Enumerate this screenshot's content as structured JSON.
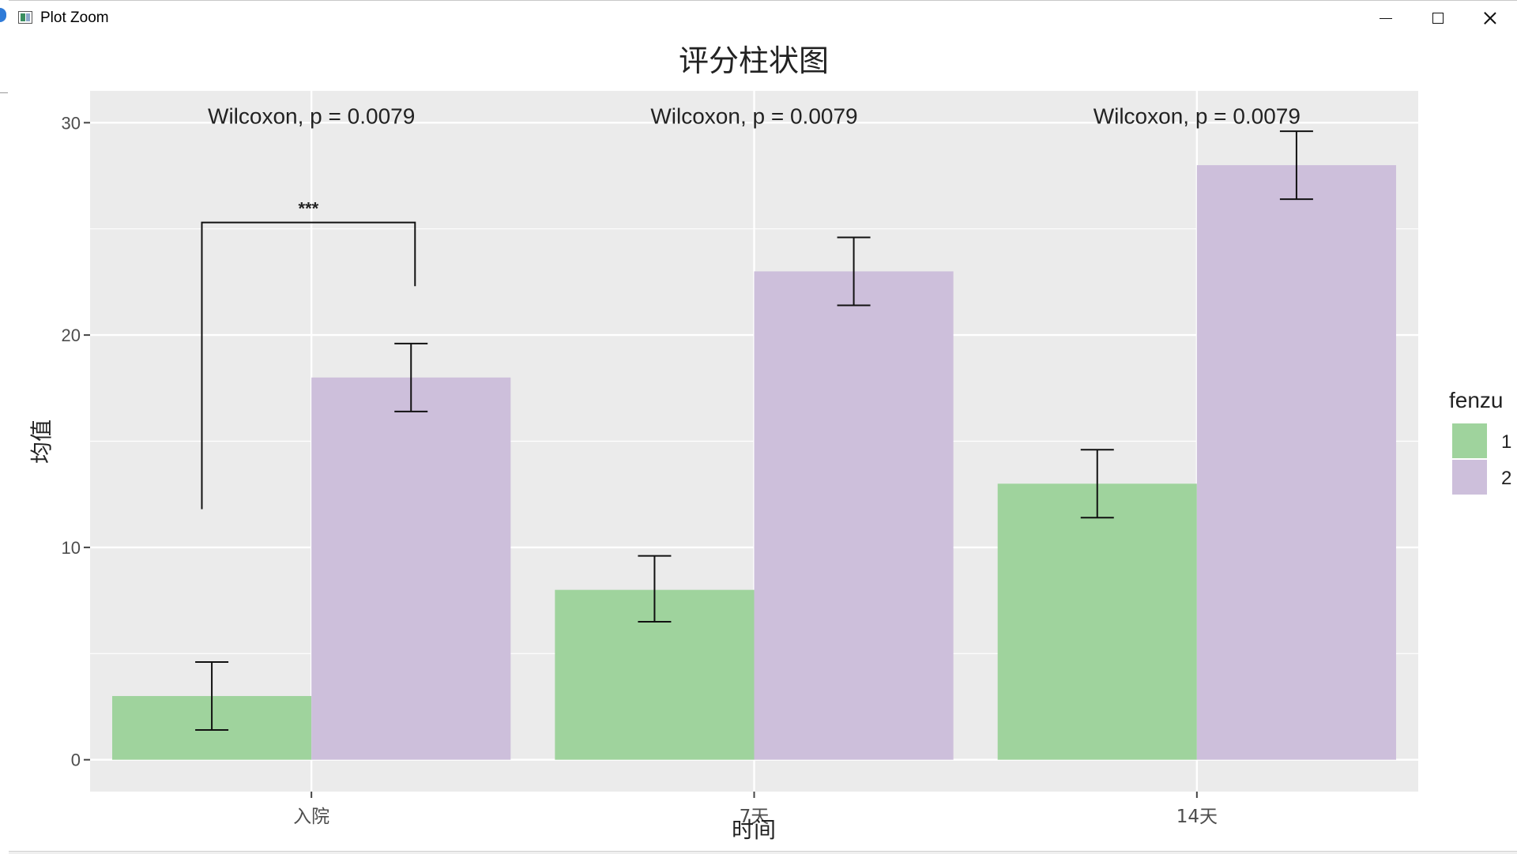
{
  "window": {
    "title": "Plot Zoom",
    "icon": "plot-zoom-icon",
    "controls": [
      "minimize-icon",
      "maximize-icon",
      "close-icon"
    ]
  },
  "chart_data": {
    "type": "bar",
    "title": "评分柱状图",
    "xlabel": "时间",
    "ylabel": "均值",
    "categories": [
      "入院",
      "7天",
      "14天"
    ],
    "ylim": [
      -1.5,
      31.5
    ],
    "yticks": [
      0,
      10,
      20,
      30
    ],
    "grid": true,
    "legend": {
      "title": "fenzu",
      "position": "right"
    },
    "series": [
      {
        "name": "1",
        "color": "#9fd39d",
        "values": [
          3,
          8,
          13
        ],
        "error_low": [
          1.4,
          6.5,
          11.4
        ],
        "error_high": [
          4.6,
          9.6,
          14.6
        ]
      },
      {
        "name": "2",
        "color": "#cdbfdb",
        "values": [
          18,
          23,
          28
        ],
        "error_low": [
          16.4,
          21.4,
          26.4
        ],
        "error_high": [
          19.6,
          24.6,
          29.6
        ]
      }
    ],
    "annotations": [
      {
        "text": "Wilcoxon, p = 0.0079",
        "category": "入院",
        "y": 30.3
      },
      {
        "text": "Wilcoxon, p = 0.0079",
        "category": "7天",
        "y": 30.3
      },
      {
        "text": "Wilcoxon, p = 0.0079",
        "category": "14天",
        "y": 30.3
      }
    ],
    "significance": {
      "label": "***",
      "category": "入院",
      "y": 25.3,
      "left_end": 11.8,
      "right_end": 22.3
    },
    "colors": {
      "panel": "#ebebeb",
      "grid": "#ffffff",
      "text": "#222222"
    }
  }
}
